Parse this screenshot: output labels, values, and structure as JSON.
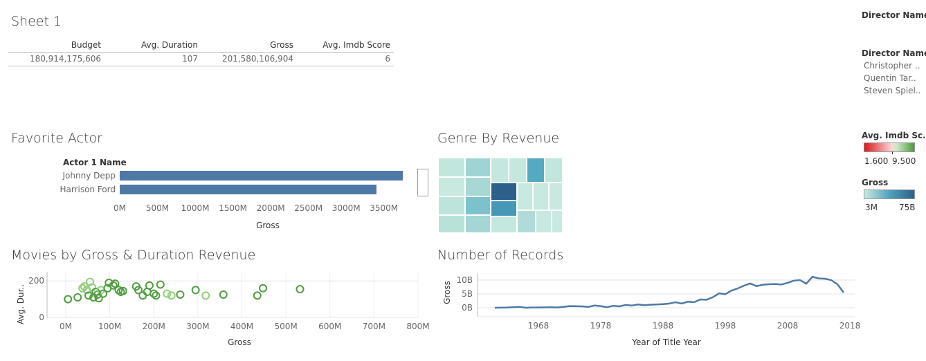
{
  "sheet1": {
    "title": "Sheet 1",
    "columns": [
      "Budget",
      "Avg. Duration",
      "Gross",
      "Avg. Imdb Score"
    ],
    "values": [
      "180,914,175,606",
      "107",
      "201,580,106,904",
      "6"
    ]
  },
  "director_filter": {
    "title": "Director Name",
    "list_header": "Director Name",
    "items": [
      "Christopher ..",
      "Quentin Tar..",
      "Steven Spiel.."
    ]
  },
  "legend_imdb": {
    "title": "Avg. Imdb Sc..",
    "min": "1.600",
    "max": "9.500",
    "color_low": "#d7191c",
    "color_high": "#4a9a3a"
  },
  "legend_gross": {
    "title": "Gross",
    "min": "3M",
    "max": "75B",
    "color_low": "#c7e9e0",
    "color_high": "#2c5f8a"
  },
  "favorite_actor": {
    "title": "Favorite Actor",
    "row_header": "Actor 1 Name",
    "x_title": "Gross",
    "chart_data": {
      "type": "bar",
      "categories": [
        "Johnny Depp",
        "Harrison Ford"
      ],
      "values": [
        3750,
        3400
      ],
      "unit": "M",
      "xlabel": "Gross",
      "xlim": [
        0,
        3750
      ],
      "ticks": [
        "0M",
        "500M",
        "1000M",
        "1500M",
        "2000M",
        "2500M",
        "3000M",
        "3500M"
      ]
    }
  },
  "genre_by_revenue": {
    "title": "Genre By Revenue",
    "chart_data": {
      "type": "heatmap",
      "note_colors": [
        "#c7e9e0",
        "#a5d6d6",
        "#76c0cb",
        "#4fa3bf",
        "#2c5f8a"
      ]
    }
  },
  "movies_scatter": {
    "title": "Movies by Gross & Duration Revenue",
    "x_title": "Gross",
    "y_title": "Avg. Dur..",
    "chart_data": {
      "type": "scatter",
      "xlabel": "Gross",
      "ylabel": "Avg. Dur..",
      "x_unit": "M",
      "xlim": [
        0,
        800
      ],
      "ylim": [
        0,
        250
      ],
      "x_ticks": [
        "0M",
        "100M",
        "200M",
        "300M",
        "400M",
        "500M",
        "600M",
        "700M",
        "800M"
      ],
      "y_ticks": [
        "0",
        "200"
      ],
      "points": [
        {
          "x": 5,
          "y": 100
        },
        {
          "x": 27,
          "y": 110
        },
        {
          "x": 38,
          "y": 160
        },
        {
          "x": 42,
          "y": 170
        },
        {
          "x": 48,
          "y": 150
        },
        {
          "x": 52,
          "y": 120
        },
        {
          "x": 55,
          "y": 195
        },
        {
          "x": 60,
          "y": 165
        },
        {
          "x": 63,
          "y": 110
        },
        {
          "x": 68,
          "y": 140
        },
        {
          "x": 72,
          "y": 125
        },
        {
          "x": 75,
          "y": 105
        },
        {
          "x": 80,
          "y": 150
        },
        {
          "x": 85,
          "y": 130
        },
        {
          "x": 95,
          "y": 160
        },
        {
          "x": 98,
          "y": 190
        },
        {
          "x": 108,
          "y": 175
        },
        {
          "x": 112,
          "y": 185
        },
        {
          "x": 120,
          "y": 150
        },
        {
          "x": 125,
          "y": 140
        },
        {
          "x": 130,
          "y": 145
        },
        {
          "x": 160,
          "y": 170
        },
        {
          "x": 165,
          "y": 150
        },
        {
          "x": 175,
          "y": 120
        },
        {
          "x": 185,
          "y": 140
        },
        {
          "x": 190,
          "y": 175
        },
        {
          "x": 200,
          "y": 130
        },
        {
          "x": 205,
          "y": 120
        },
        {
          "x": 215,
          "y": 180
        },
        {
          "x": 230,
          "y": 130
        },
        {
          "x": 240,
          "y": 120
        },
        {
          "x": 260,
          "y": 125
        },
        {
          "x": 295,
          "y": 150
        },
        {
          "x": 318,
          "y": 120
        },
        {
          "x": 358,
          "y": 125
        },
        {
          "x": 435,
          "y": 120
        },
        {
          "x": 448,
          "y": 160
        },
        {
          "x": 532,
          "y": 155
        }
      ]
    }
  },
  "records_line": {
    "title": "Number of Records",
    "x_title": "Year of Title Year",
    "y_title": "Gross",
    "chart_data": {
      "type": "line",
      "xlabel": "Year of Title Year",
      "ylabel": "Gross",
      "y_unit": "B",
      "xlim": [
        1958,
        2020
      ],
      "ylim": [
        0,
        12
      ],
      "x_ticks": [
        "1968",
        "1978",
        "1988",
        "1998",
        "2008",
        "2018"
      ],
      "y_ticks": [
        "0B",
        "5B",
        "10B"
      ],
      "x": [
        1961,
        1963,
        1965,
        1966,
        1967,
        1968,
        1970,
        1971,
        1972,
        1973,
        1975,
        1976,
        1977,
        1978,
        1979,
        1980,
        1981,
        1982,
        1983,
        1984,
        1985,
        1986,
        1987,
        1988,
        1989,
        1990,
        1991,
        1992,
        1993,
        1994,
        1995,
        1996,
        1997,
        1998,
        1999,
        2000,
        2001,
        2002,
        2003,
        2004,
        2005,
        2006,
        2007,
        2008,
        2009,
        2010,
        2011,
        2012,
        2013,
        2014,
        2015,
        2016,
        2017
      ],
      "y": [
        0.0,
        0.1,
        0.3,
        0.0,
        0.1,
        0.1,
        0.2,
        0.1,
        0.3,
        0.6,
        0.5,
        0.3,
        0.8,
        0.6,
        0.2,
        0.7,
        0.5,
        1.0,
        0.8,
        1.2,
        0.9,
        1.1,
        1.2,
        1.3,
        1.5,
        2.0,
        1.5,
        2.2,
        2.0,
        3.0,
        2.9,
        3.8,
        5.2,
        4.9,
        6.2,
        7.0,
        8.0,
        8.8,
        7.8,
        8.3,
        8.5,
        8.6,
        8.4,
        9.0,
        9.8,
        10.0,
        8.7,
        11.2,
        10.6,
        10.5,
        10.0,
        8.5,
        5.5
      ]
    }
  }
}
